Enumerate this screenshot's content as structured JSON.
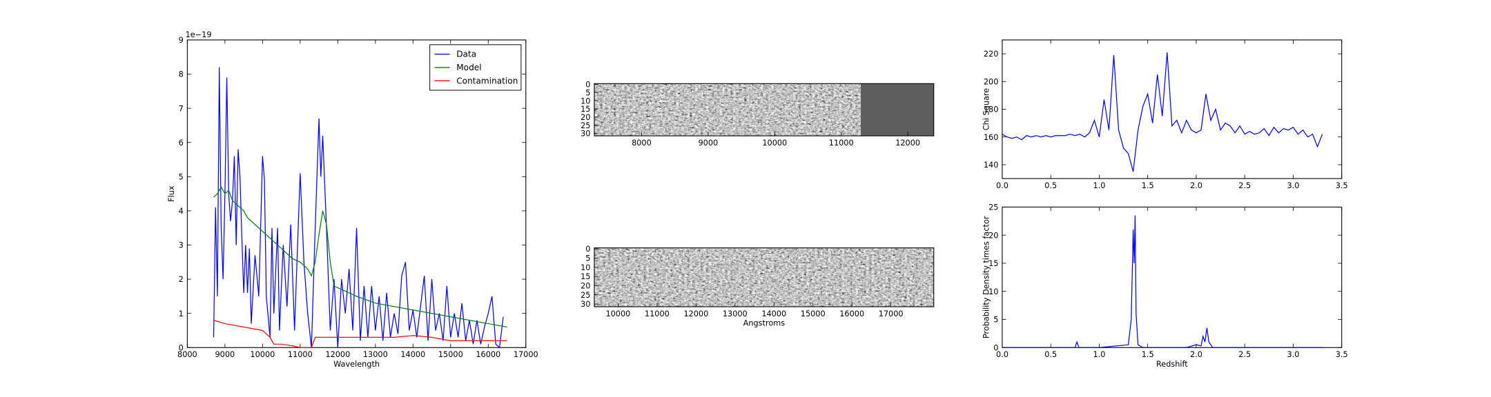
{
  "chart_data": [
    {
      "type": "line",
      "xlabel": "Wavelength",
      "ylabel": "Flux",
      "y_offset_label": "1e−19",
      "legend": "upper right",
      "xlim": [
        8000,
        17000
      ],
      "xticks": [
        8000,
        9000,
        10000,
        11000,
        12000,
        13000,
        14000,
        15000,
        16000,
        17000
      ],
      "ylim": [
        0,
        9
      ],
      "yticks": [
        0,
        1,
        2,
        3,
        4,
        5,
        6,
        7,
        8,
        9
      ],
      "series": [
        {
          "name": "Data",
          "color": "#0000ff",
          "x": [
            8700,
            8750,
            8800,
            8850,
            8900,
            8950,
            9000,
            9050,
            9100,
            9150,
            9200,
            9250,
            9300,
            9350,
            9400,
            9450,
            9500,
            9550,
            9600,
            9650,
            9700,
            9800,
            9900,
            10000,
            10050,
            10100,
            10200,
            10250,
            10300,
            10400,
            10450,
            10550,
            10650,
            10750,
            10850,
            11000,
            11100,
            11200,
            11300,
            11400,
            11500,
            11550,
            11600,
            11700,
            11800,
            11900,
            12000,
            12100,
            12200,
            12300,
            12400,
            12500,
            12600,
            12700,
            12800,
            12900,
            13000,
            13100,
            13200,
            13300,
            13400,
            13500,
            13600,
            13700,
            13800,
            13900,
            14000,
            14100,
            14200,
            14300,
            14400,
            14500,
            14600,
            14700,
            14800,
            14900,
            15000,
            15100,
            15200,
            15300,
            15400,
            15500,
            15600,
            15700,
            15800,
            15900,
            16000,
            16100,
            16200,
            16300,
            16400
          ],
          "values": [
            0.3,
            4.1,
            1.5,
            8.2,
            3.5,
            2.0,
            4.5,
            7.9,
            4.5,
            3.7,
            4.3,
            5.6,
            3.0,
            5.8,
            5.0,
            3.2,
            1.6,
            3.0,
            1.6,
            2.9,
            0.7,
            2.7,
            1.5,
            5.6,
            4.9,
            1.5,
            0.3,
            3.5,
            1.0,
            3.5,
            0.5,
            3.0,
            1.2,
            3.6,
            0.5,
            5.1,
            2.5,
            1.0,
            0.0,
            3.5,
            6.7,
            5.0,
            6.2,
            3.5,
            0.5,
            2.0,
            0.0,
            2.0,
            1.0,
            2.3,
            0.5,
            3.5,
            0.2,
            1.8,
            0.3,
            1.8,
            0.5,
            1.5,
            0.2,
            1.6,
            0.3,
            1.0,
            0.4,
            2.1,
            2.5,
            0.5,
            1.1,
            0.3,
            1.2,
            2.1,
            0.2,
            2.0,
            0.5,
            1.0,
            0.2,
            1.8,
            0.3,
            1.0,
            0.3,
            1.3,
            0.2,
            0.8,
            0.1,
            0.8,
            0.1,
            0.6,
            1.0,
            1.5,
            0.1,
            0.0,
            0.9
          ]
        },
        {
          "name": "Model",
          "color": "#008000",
          "x": [
            8700,
            8800,
            8900,
            9000,
            9100,
            9200,
            9300,
            9400,
            9500,
            9600,
            9700,
            9800,
            10000,
            10200,
            10500,
            10800,
            11000,
            11200,
            11300,
            11400,
            11500,
            11600,
            11700,
            11800,
            11900,
            12500,
            13000,
            14000,
            15000,
            16000,
            16500
          ],
          "values": [
            4.4,
            4.5,
            4.7,
            4.5,
            4.6,
            4.3,
            4.2,
            4.1,
            4.0,
            3.8,
            3.7,
            3.6,
            3.4,
            3.2,
            2.9,
            2.6,
            2.5,
            2.3,
            2.1,
            2.5,
            3.3,
            4.0,
            3.6,
            2.5,
            1.8,
            1.5,
            1.3,
            1.1,
            0.9,
            0.7,
            0.6
          ]
        },
        {
          "name": "Contamination",
          "color": "#ff0000",
          "x": [
            8700,
            9000,
            9500,
            10000,
            10200,
            10300,
            10500,
            10800,
            11000,
            11300,
            11400,
            12000,
            13000,
            13500,
            14000,
            14500,
            15000,
            16000,
            16500
          ],
          "values": [
            0.8,
            0.7,
            0.6,
            0.5,
            0.3,
            0.1,
            0.1,
            0.05,
            0.0,
            0.0,
            0.3,
            0.3,
            0.3,
            0.3,
            0.35,
            0.3,
            0.2,
            0.2,
            0.2
          ]
        }
      ]
    },
    {
      "type": "image",
      "xlim": [
        7290,
        12390
      ],
      "xticks": [
        8000,
        9000,
        10000,
        11000,
        12000
      ],
      "ylim": [
        31.5,
        -0.5
      ],
      "yticks": [
        0,
        5,
        10,
        15,
        20,
        25,
        30
      ]
    },
    {
      "type": "image",
      "xlabel": "Angstroms",
      "xlim": [
        9390,
        18100
      ],
      "xticks": [
        10000,
        11000,
        12000,
        13000,
        14000,
        15000,
        16000,
        17000
      ],
      "ylim": [
        31.5,
        -0.5
      ],
      "yticks": [
        0,
        5,
        10,
        15,
        20,
        25,
        30
      ]
    },
    {
      "type": "line",
      "ylabel": "Chi Square",
      "xlim": [
        0,
        3.5
      ],
      "xticks": [
        {
          "value": 0,
          "label": "0.0"
        },
        0.5,
        {
          "value": 1,
          "label": "1.0"
        },
        1.5,
        {
          "value": 2,
          "label": "2.0"
        },
        2.5,
        {
          "value": 3,
          "label": "3.0"
        },
        3.5
      ],
      "ylim": [
        130,
        230
      ],
      "yticks": [
        140,
        160,
        180,
        200,
        220
      ],
      "series": [
        {
          "color": "#0000ff",
          "x": [
            0,
            0.05,
            0.1,
            0.15,
            0.2,
            0.25,
            0.3,
            0.35,
            0.4,
            0.45,
            0.5,
            0.55,
            0.6,
            0.65,
            0.7,
            0.75,
            0.8,
            0.85,
            0.9,
            0.95,
            1.0,
            1.05,
            1.1,
            1.15,
            1.2,
            1.25,
            1.3,
            1.35,
            1.4,
            1.45,
            1.5,
            1.55,
            1.6,
            1.65,
            1.7,
            1.75,
            1.8,
            1.85,
            1.9,
            1.95,
            2.0,
            2.05,
            2.1,
            2.15,
            2.2,
            2.25,
            2.3,
            2.35,
            2.4,
            2.45,
            2.5,
            2.55,
            2.6,
            2.65,
            2.7,
            2.75,
            2.8,
            2.85,
            2.9,
            2.95,
            3.0,
            3.05,
            3.1,
            3.15,
            3.2,
            3.25,
            3.3
          ],
          "values": [
            162,
            160,
            159,
            160,
            158,
            161,
            160,
            161,
            160,
            161,
            160,
            161,
            161,
            161,
            162,
            161,
            162,
            160,
            163,
            172,
            160,
            187,
            165,
            219,
            165,
            152,
            148,
            135,
            165,
            182,
            191,
            170,
            205,
            175,
            221,
            168,
            172,
            163,
            172,
            165,
            163,
            165,
            191,
            172,
            180,
            165,
            170,
            168,
            163,
            168,
            162,
            164,
            162,
            163,
            166,
            161,
            167,
            163,
            166,
            165,
            167,
            162,
            165,
            160,
            162,
            153,
            162
          ]
        }
      ]
    },
    {
      "type": "line",
      "xlabel": "Redshift",
      "ylabel": "Probability Density times factor",
      "xlim": [
        0,
        3.5
      ],
      "xticks": [
        {
          "value": 0,
          "label": "0.0"
        },
        0.5,
        {
          "value": 1,
          "label": "1.0"
        },
        1.5,
        {
          "value": 2,
          "label": "2.0"
        },
        2.5,
        {
          "value": 3,
          "label": "3.0"
        },
        3.5
      ],
      "ylim": [
        0,
        25
      ],
      "yticks": [
        0,
        5,
        10,
        15,
        20,
        25
      ],
      "series": [
        {
          "color": "#0000ff",
          "x": [
            0,
            0.5,
            0.75,
            0.77,
            0.79,
            1.0,
            1.3,
            1.33,
            1.35,
            1.36,
            1.37,
            1.38,
            1.4,
            1.45,
            1.9,
            2.0,
            2.05,
            2.07,
            2.09,
            2.11,
            2.13,
            2.17,
            2.5,
            3.3
          ],
          "values": [
            0,
            0,
            0,
            1,
            0,
            0,
            0.5,
            5,
            21,
            15,
            23.5,
            6,
            0.5,
            0,
            0,
            0.5,
            0.3,
            2,
            1,
            3.5,
            1,
            0,
            0,
            0
          ]
        }
      ]
    }
  ]
}
